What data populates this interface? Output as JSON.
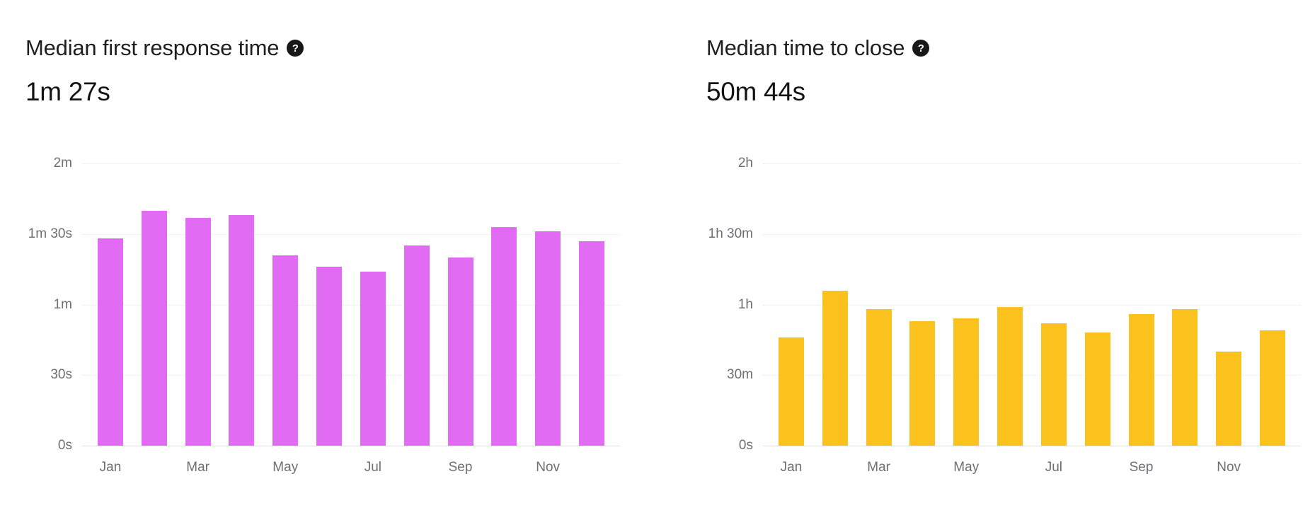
{
  "page": {
    "background": "#ffffff"
  },
  "icons": {
    "help": "?"
  },
  "chart_data": [
    {
      "type": "bar",
      "title": "Median first response time",
      "summary_value": "1m 27s",
      "bar_color": "#e26bf3",
      "categories": [
        "Jan",
        "Feb",
        "Mar",
        "Apr",
        "May",
        "Jun",
        "Jul",
        "Aug",
        "Sep",
        "Oct",
        "Nov",
        "Dec"
      ],
      "values_seconds": [
        88,
        100,
        97,
        98,
        81,
        76,
        74,
        85,
        80,
        93,
        91,
        87
      ],
      "x_tick_labels": [
        "Jan",
        "Mar",
        "May",
        "Jul",
        "Sep",
        "Nov"
      ],
      "y_tick_labels": [
        "2m",
        "1m 30s",
        "1m",
        "30s",
        "0s"
      ],
      "ylim_seconds": [
        0,
        120
      ],
      "grid": true,
      "legend": false
    },
    {
      "type": "bar",
      "title": "Median time to close",
      "summary_value": "50m 44s",
      "bar_color": "#fbc21e",
      "categories": [
        "Jan",
        "Feb",
        "Mar",
        "Apr",
        "May",
        "Jun",
        "Jul",
        "Aug",
        "Sep",
        "Oct",
        "Nov",
        "Dec"
      ],
      "values_seconds": [
        2760,
        3960,
        3480,
        3180,
        3240,
        3540,
        3120,
        2880,
        3360,
        3480,
        2400,
        2940
      ],
      "x_tick_labels": [
        "Jan",
        "Mar",
        "May",
        "Jul",
        "Sep",
        "Nov"
      ],
      "y_tick_labels": [
        "2h",
        "1h 30m",
        "1h",
        "30m",
        "0s"
      ],
      "ylim_seconds": [
        0,
        7200
      ],
      "grid": true,
      "legend": false
    }
  ]
}
